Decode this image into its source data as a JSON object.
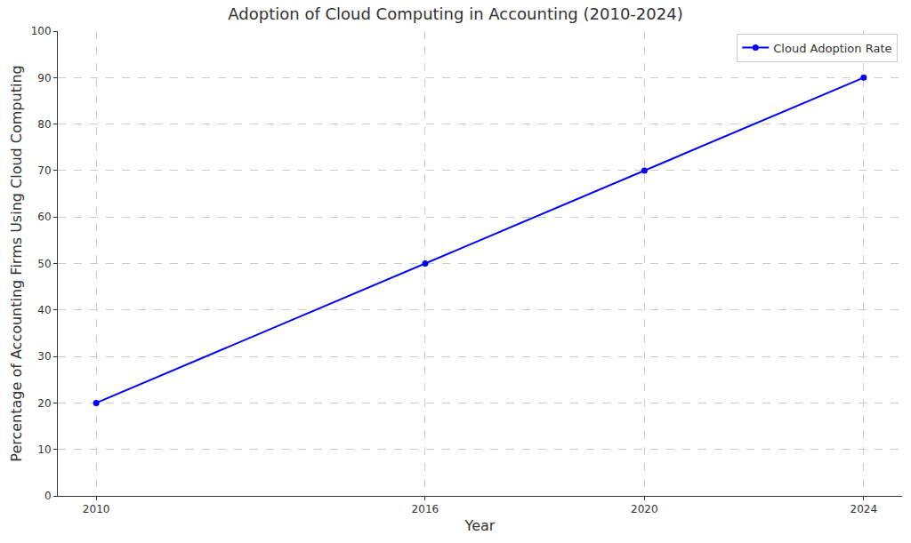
{
  "chart_data": {
    "type": "line",
    "title": "Adoption of Cloud Computing in Accounting (2010-2024)",
    "x_label": "Year",
    "y_label": "Percentage of Accounting Firms Using Cloud Computing",
    "x": [
      2010,
      2016,
      2020,
      2024
    ],
    "series": [
      {
        "name": "Cloud Adoption Rate",
        "color": "#0000ff",
        "values": [
          20,
          50,
          70,
          90
        ],
        "marker": "circle",
        "line_style": "solid"
      }
    ],
    "xlim": [
      2009.3,
      2024.7
    ],
    "xticks": [
      2010,
      2016,
      2020,
      2024
    ],
    "ylim": [
      0,
      100
    ],
    "yticks": [
      0,
      10,
      20,
      30,
      40,
      50,
      60,
      70,
      80,
      90,
      100
    ],
    "grid": true,
    "legend": "upper right"
  }
}
